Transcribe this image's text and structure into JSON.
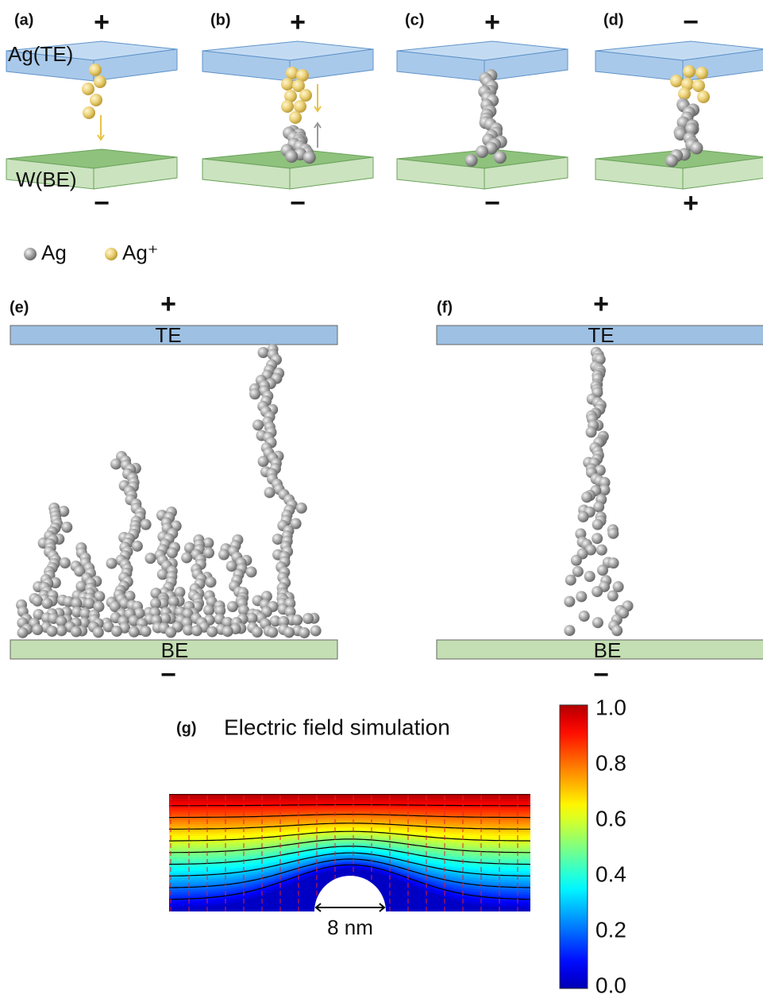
{
  "panels": [
    {
      "label": "(a)",
      "top_sign": "+",
      "bottom_sign": "−",
      "top_electrode": "Ag(TE)",
      "bottom_electrode": "W(BE)"
    },
    {
      "label": "(b)",
      "top_sign": "+",
      "bottom_sign": "−"
    },
    {
      "label": "(c)",
      "top_sign": "+",
      "bottom_sign": "−"
    },
    {
      "label": "(d)",
      "top_sign": "−",
      "bottom_sign": "+"
    }
  ],
  "legend": {
    "items": [
      "Ag",
      "Ag⁺"
    ]
  },
  "filament_panels": [
    {
      "label": "(e)",
      "top_sign": "+",
      "top_electrode": "TE",
      "bottom_electrode": "BE",
      "bottom_sign": "−"
    },
    {
      "label": "(f)",
      "top_sign": "+",
      "top_electrode": "TE",
      "bottom_electrode": "BE",
      "bottom_sign": "−"
    }
  ],
  "simulation": {
    "label": "(g)",
    "title": "Electric field simulation",
    "scale_label": "8 nm",
    "colorbar_labels": [
      "1.0",
      "0.8",
      "0.6",
      "0.4",
      "0.2",
      "0.0"
    ]
  }
}
